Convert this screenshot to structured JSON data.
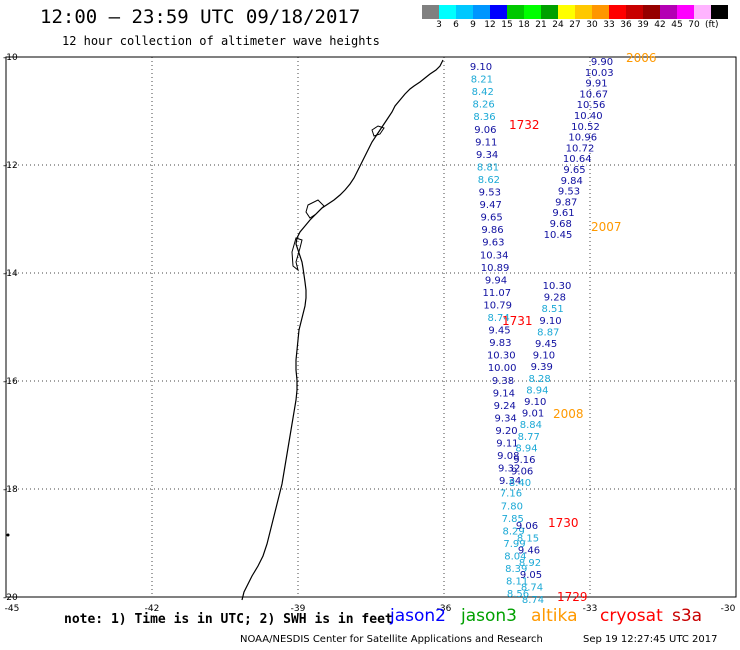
{
  "header": {
    "title": "12:00 – 23:59 UTC 09/18/2017",
    "subtitle": "12 hour collection of altimeter wave heights"
  },
  "colorbar": {
    "colors": [
      "#808080",
      "#00ffff",
      "#00c8ff",
      "#0096ff",
      "#0000ff",
      "#00c800",
      "#00ff00",
      "#00a000",
      "#ffff00",
      "#ffc800",
      "#ff9600",
      "#ff0000",
      "#c80000",
      "#960000",
      "#b400b4",
      "#ff00ff",
      "#ffb4ff",
      "#000000"
    ],
    "tick_labels": [
      "3",
      "6",
      "9",
      "12",
      "15",
      "18",
      "21",
      "24",
      "27",
      "30",
      "33",
      "36",
      "39",
      "42",
      "45",
      "70"
    ],
    "unit": "(ft)"
  },
  "map": {
    "lon_range": [
      -45,
      -30
    ],
    "lat_range": [
      -20,
      -10
    ],
    "lat_labels": [
      "-10",
      "-12",
      "-14",
      "-16",
      "-18",
      "-20"
    ],
    "lon_labels": [
      "-45",
      "-42",
      "-39",
      "-36",
      "-33",
      "-30"
    ],
    "grid": "dotted",
    "pass_colors": {
      "jason2": "#0000aa",
      "jason3": "#00aa00",
      "altika": "#ff9900",
      "cryosat": "#ff0000",
      "s3a": "#ff0000",
      "light": "#1ca9d6"
    }
  },
  "tracks": [
    {
      "id": "2006",
      "color": "#ff9900",
      "values": [
        {
          "v": "9.90",
          "c": "d"
        },
        {
          "v": "10.03",
          "c": "d"
        },
        {
          "v": "9.91",
          "c": "d"
        },
        {
          "v": "10.67",
          "c": "d"
        },
        {
          "v": "10.56",
          "c": "d"
        },
        {
          "v": "10.40",
          "c": "d"
        },
        {
          "v": "10.52",
          "c": "d"
        },
        {
          "v": "10.96",
          "c": "d"
        },
        {
          "v": "10.72",
          "c": "d"
        },
        {
          "v": "10.64",
          "c": "d"
        },
        {
          "v": "9.65",
          "c": "d"
        },
        {
          "v": "9.84",
          "c": "d"
        },
        {
          "v": "9.53",
          "c": "d"
        },
        {
          "v": "9.87",
          "c": "d"
        },
        {
          "v": "9.61",
          "c": "d"
        },
        {
          "v": "9.68",
          "c": "d"
        },
        {
          "v": "10.45",
          "c": "d"
        }
      ]
    },
    {
      "id": "1732",
      "color": "#ff0000",
      "values": [
        {
          "v": "9.10",
          "c": "d"
        },
        {
          "v": "8.21",
          "c": "l"
        },
        {
          "v": "8.42",
          "c": "l"
        },
        {
          "v": "8.26",
          "c": "l"
        },
        {
          "v": "8.36",
          "c": "l"
        },
        {
          "v": "9.06",
          "c": "d"
        },
        {
          "v": "9.11",
          "c": "d"
        },
        {
          "v": "9.34",
          "c": "d"
        },
        {
          "v": "8.81",
          "c": "l"
        },
        {
          "v": "8.62",
          "c": "l"
        },
        {
          "v": "9.53",
          "c": "d"
        },
        {
          "v": "9.47",
          "c": "d"
        },
        {
          "v": "9.65",
          "c": "d"
        },
        {
          "v": "9.86",
          "c": "d"
        },
        {
          "v": "9.63",
          "c": "d"
        },
        {
          "v": "10.34",
          "c": "d"
        },
        {
          "v": "10.89",
          "c": "d"
        },
        {
          "v": "9.94",
          "c": "d"
        },
        {
          "v": "11.07",
          "c": "d"
        },
        {
          "v": "10.79",
          "c": "d"
        },
        {
          "v": "8.74",
          "c": "l"
        },
        {
          "v": "9.45",
          "c": "d"
        },
        {
          "v": "9.83",
          "c": "d"
        },
        {
          "v": "10.30",
          "c": "d"
        },
        {
          "v": "10.00",
          "c": "d"
        },
        {
          "v": "9.38",
          "c": "d"
        },
        {
          "v": "9.14",
          "c": "d"
        },
        {
          "v": "9.24",
          "c": "d"
        },
        {
          "v": "9.34",
          "c": "d"
        },
        {
          "v": "9.20",
          "c": "d"
        },
        {
          "v": "9.11",
          "c": "d"
        },
        {
          "v": "9.08",
          "c": "d"
        },
        {
          "v": "9.32",
          "c": "d"
        },
        {
          "v": "9.34",
          "c": "d"
        },
        {
          "v": "7.16",
          "c": "l"
        },
        {
          "v": "7.80",
          "c": "l"
        },
        {
          "v": "7.85",
          "c": "l"
        },
        {
          "v": "8.29",
          "c": "l"
        },
        {
          "v": "7.99",
          "c": "l"
        },
        {
          "v": "8.04",
          "c": "l"
        },
        {
          "v": "8.39",
          "c": "l"
        },
        {
          "v": "8.11",
          "c": "l"
        },
        {
          "v": "8.56",
          "c": "l"
        }
      ]
    },
    {
      "id": "2007",
      "color": "#ff9900",
      "values": [
        {
          "v": "10.30",
          "c": "d"
        },
        {
          "v": "9.28",
          "c": "d"
        },
        {
          "v": "8.51",
          "c": "l"
        },
        {
          "v": "9.10",
          "c": "d"
        },
        {
          "v": "8.87",
          "c": "l"
        },
        {
          "v": "9.45",
          "c": "d"
        },
        {
          "v": "9.10",
          "c": "d"
        },
        {
          "v": "9.39",
          "c": "d"
        },
        {
          "v": "8.28",
          "c": "l"
        },
        {
          "v": "8.94",
          "c": "l"
        },
        {
          "v": "9.10",
          "c": "d"
        },
        {
          "v": "9.01",
          "c": "d"
        },
        {
          "v": "8.84",
          "c": "l"
        },
        {
          "v": "8.77",
          "c": "l"
        },
        {
          "v": "8.94",
          "c": "l"
        },
        {
          "v": "9.16",
          "c": "d"
        },
        {
          "v": "9.06",
          "c": "d"
        },
        {
          "v": "8.40",
          "c": "l"
        }
      ]
    },
    {
      "id": "1731",
      "color": "#ff0000",
      "values": [
        {
          "v": "9.06",
          "c": "d"
        },
        {
          "v": "8.15",
          "c": "l"
        },
        {
          "v": "9.46",
          "c": "d"
        },
        {
          "v": "8.92",
          "c": "l"
        },
        {
          "v": "9.05",
          "c": "d"
        },
        {
          "v": "8.74",
          "c": "l"
        },
        {
          "v": "8.74",
          "c": "l"
        }
      ]
    }
  ],
  "pass_labels": [
    {
      "text": "2006",
      "color": "#ff9900"
    },
    {
      "text": "1732",
      "color": "#ff0000"
    },
    {
      "text": "2007",
      "color": "#ff9900"
    },
    {
      "text": "1731",
      "color": "#ff0000"
    },
    {
      "text": "2008",
      "color": "#ff9900"
    },
    {
      "text": "1730",
      "color": "#ff0000"
    },
    {
      "text": "1729",
      "color": "#ff0000"
    }
  ],
  "note": "note: 1) Time is in UTC; 2) SWH is in feet",
  "legend": [
    {
      "label": "jason2",
      "color": "#0000ff"
    },
    {
      "label": "jason3",
      "color": "#00a000"
    },
    {
      "label": "altika",
      "color": "#ff9900"
    },
    {
      "label": "cryosat",
      "color": "#ff0000"
    },
    {
      "label": "s3a",
      "color": "#c80000"
    }
  ],
  "footer": {
    "credit": "NOAA/NESDIS Center for Satellite Applications and Research",
    "timestamp": "Sep 19 12:27:45 UTC 2017"
  }
}
